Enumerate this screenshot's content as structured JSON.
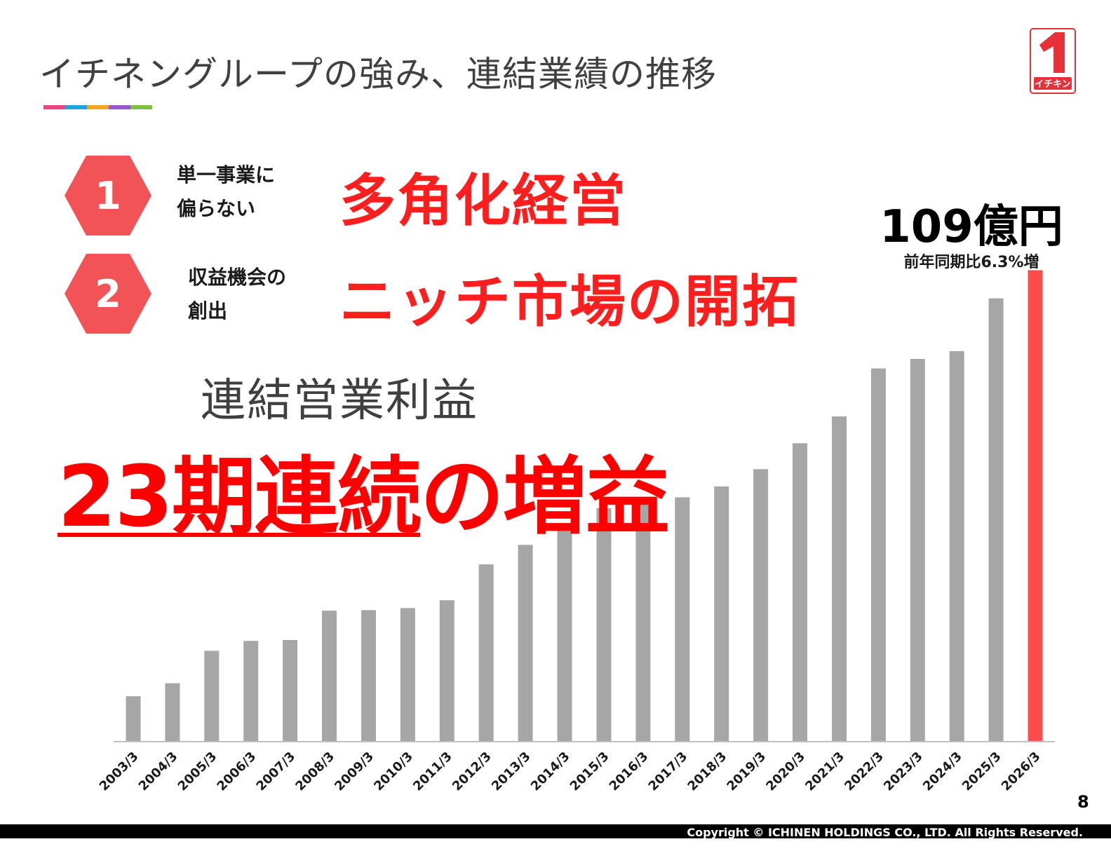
{
  "header": {
    "title": "イチネングループの強み、連結業績の推移",
    "bar_colors": [
      "#e8457f",
      "#1fa6e0",
      "#f5a623",
      "#9b59d0",
      "#7cc242"
    ]
  },
  "logo": {
    "glyph": "1",
    "text": "イチキン",
    "color": "#e8303a"
  },
  "strengths": [
    {
      "number": "1",
      "label_lines": [
        "単一事業に",
        "偏らない"
      ],
      "headline": "多角化経営"
    },
    {
      "number": "2",
      "label_lines": [
        "収益機会の",
        "創出"
      ],
      "headline": "ニッチ市場の開拓"
    }
  ],
  "subtitle": "連結営業利益",
  "headline": {
    "underlined": "23期連続",
    "rest": "の増益"
  },
  "latest": {
    "value": "109億円",
    "note": "前年同期比6.3%増"
  },
  "colors": {
    "hex": "#f25357",
    "bar": "#a6a6a6",
    "highlight_bar": "#ff4b4b",
    "accent_red": "#ff1e1e"
  },
  "chart_data": {
    "type": "bar",
    "categories": [
      "2003/3",
      "2004/3",
      "2005/3",
      "2006/3",
      "2007/3",
      "2008/3",
      "2009/3",
      "2010/3",
      "2011/3",
      "2012/3",
      "2013/3",
      "2014/3",
      "2015/3",
      "2016/3",
      "2017/3",
      "2018/3",
      "2019/3",
      "2020/3",
      "2021/3",
      "2022/3",
      "2023/3",
      "2024/3",
      "2025/3",
      "2026/3"
    ],
    "values": [
      10.5,
      13.5,
      21,
      23.3,
      23.5,
      30.3,
      30.4,
      30.9,
      32.7,
      41,
      45.5,
      50.5,
      54,
      55,
      56.5,
      59,
      63,
      69,
      75.2,
      86.3,
      88.5,
      90.3,
      102.5,
      109
    ],
    "highlight_index": 23,
    "ylim": [
      0,
      118
    ],
    "title": "",
    "xlabel": "",
    "ylabel": "",
    "grid": false,
    "legend": "none"
  },
  "page_number": "8",
  "footer": {
    "copyright": "Copyright © ICHINEN HOLDINGS CO., LTD.  All Rights Reserved."
  }
}
